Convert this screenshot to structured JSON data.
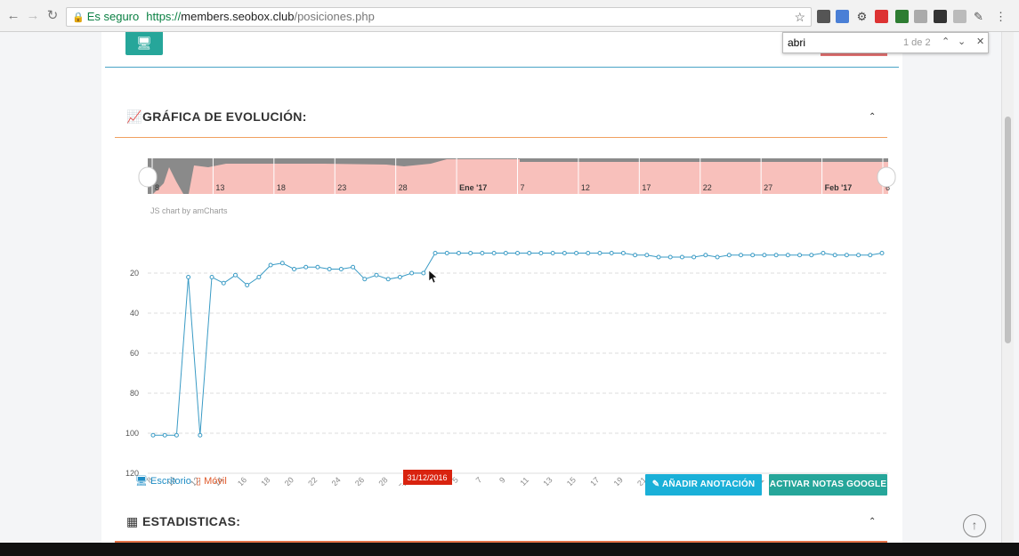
{
  "browser": {
    "secure_label": "Es seguro",
    "url_protocol": "https://",
    "url_host": "members.seobox.club",
    "url_path": "/posiciones.php",
    "find_query": "abri",
    "find_count": "1 de 2"
  },
  "page": {
    "section1_title": "GRÁFICA DE EVOLUCIÓN:",
    "section2_title": "ESTADISTICAS:",
    "amcharts_credit": "JS chart by amCharts",
    "legend_desktop": "Escritorio",
    "legend_mobile": "Móvil",
    "btn_annotation": "AÑADIR ANOTACIÓN",
    "btn_google": "ACTIVAR NOTAS GOOGLE",
    "cursor_label": "31/12/2016"
  },
  "colors": {
    "accent_teal": "#26a69a",
    "annotation_blue": "#1ab0d8",
    "line_blue": "#3a9bc5",
    "scroll_pink": "#f8c0bb",
    "scroll_grey": "#8a8a8a",
    "cursor_red": "#d9230f",
    "mobile_orange": "#e05a2b"
  },
  "icons": [
    "monitor-icon",
    "line-chart-icon",
    "calculator-icon",
    "chevron-up-icon",
    "pencil-icon",
    "arrow-up-circle-icon"
  ],
  "chart_data": {
    "type": "line",
    "series": [
      {
        "values": [
          101,
          101,
          101,
          22,
          101,
          22,
          25,
          21,
          26,
          22,
          16,
          15,
          18,
          17,
          17,
          18,
          18,
          17,
          23,
          21,
          23,
          22,
          20,
          20,
          10,
          10,
          10,
          10,
          10,
          10,
          10,
          10,
          10,
          10,
          10,
          10,
          10,
          10,
          10,
          10,
          10,
          11,
          11,
          12,
          12,
          12,
          12,
          11,
          12,
          11,
          11,
          11,
          11,
          11,
          11,
          11,
          11,
          10,
          11,
          11,
          11,
          11,
          10
        ]
      }
    ],
    "y_reversed": true,
    "ylim": [
      0,
      120
    ],
    "y_ticks": [
      "20",
      "40",
      "60",
      "80",
      "100",
      "120"
    ],
    "x_ticks": [
      "8",
      "10",
      "12",
      "14",
      "16",
      "18",
      "20",
      "22",
      "24",
      "26",
      "28",
      "Ene",
      "3",
      "5",
      "7",
      "9",
      "11",
      "13",
      "15",
      "17",
      "19",
      "21",
      "23",
      "25",
      "27",
      "29",
      "31",
      "Feb '17",
      "4",
      "6"
    ],
    "scrollbar_ticks": [
      "8",
      "13",
      "18",
      "23",
      "28",
      "Ene '17",
      "7",
      "12",
      "17",
      "22",
      "27",
      "Feb '17",
      "6"
    ],
    "cursor_date": "31/12/2016",
    "grid": true
  }
}
